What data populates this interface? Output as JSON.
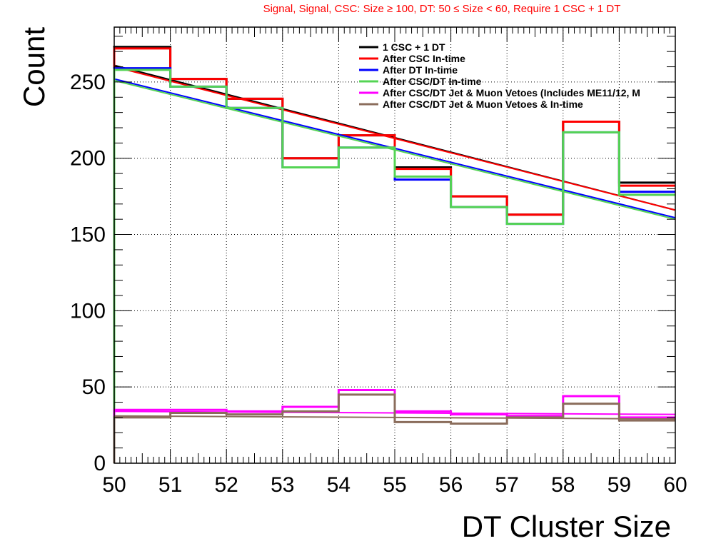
{
  "chart_data": {
    "type": "line",
    "title": "Signal, Signal, CSC: Size   ≥ 100, DT: 50  ≤ Size < 60, Require 1 CSC + 1 DT",
    "xlabel": "DT Cluster Size",
    "ylabel": "Count",
    "xlim": [
      50,
      60
    ],
    "ylim": [
      0,
      286
    ],
    "grid": true,
    "legend_position": "top-right",
    "x_ticks": [
      50,
      51,
      52,
      53,
      54,
      55,
      56,
      57,
      58,
      59,
      60
    ],
    "x_tick_labels": [
      "50",
      "51",
      "52",
      "53",
      "54",
      "55",
      "56",
      "57",
      "58",
      "59",
      "60"
    ],
    "y_ticks": [
      0,
      50,
      100,
      150,
      200,
      250
    ],
    "y_tick_labels": [
      "0",
      "50",
      "100",
      "150",
      "200",
      "250"
    ],
    "bin_edges": [
      50,
      51,
      52,
      53,
      54,
      55,
      56,
      57,
      58,
      59,
      60
    ],
    "series": [
      {
        "name": "1 CSC + 1 DT",
        "color": "#000000",
        "values": [
          273,
          252,
          239,
          200,
          215,
          194,
          175,
          163,
          224,
          184
        ],
        "fit": [
          261,
          166
        ]
      },
      {
        "name": "After CSC In-time",
        "color": "#ff0000",
        "values": [
          272,
          252,
          239,
          200,
          215,
          193,
          175,
          163,
          224,
          182
        ],
        "fit": [
          260,
          166
        ]
      },
      {
        "name": "After DT In-time",
        "color": "#0000ff",
        "values": [
          259,
          247,
          233,
          194,
          207,
          186,
          168,
          157,
          217,
          178
        ],
        "fit": [
          252,
          161
        ]
      },
      {
        "name": "After CSC/DT In-time",
        "color": "#54d454",
        "values": [
          258,
          247,
          233,
          194,
          207,
          188,
          168,
          157,
          217,
          176
        ],
        "fit": [
          251,
          160
        ]
      },
      {
        "name": "After CSC/DT Jet & Muon Vetoes (Includes ME11/12, M",
        "color": "#ff00ff",
        "values": [
          35,
          35,
          34,
          37,
          48,
          34,
          32,
          31,
          44,
          30
        ],
        "fit": [
          34,
          32
        ]
      },
      {
        "name": "After CSC/DT Jet & Muon Vetoes & In-time",
        "color": "#8b6d5c",
        "values": [
          30,
          33,
          32,
          34,
          45,
          27,
          26,
          30,
          39,
          28
        ],
        "fit": [
          31,
          29
        ]
      }
    ]
  }
}
